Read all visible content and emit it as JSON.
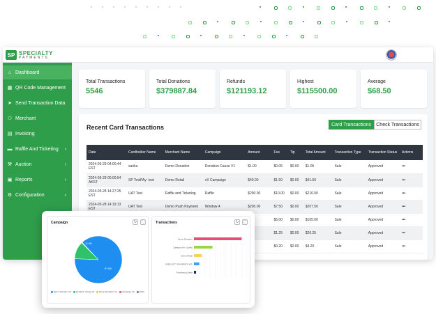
{
  "brand": {
    "logo_mark": "SP",
    "name_line1": "SPECIALTY",
    "name_line2": "PAYMENTS"
  },
  "sidebar": {
    "items": [
      {
        "label": "Dashboard",
        "icon": "home-icon",
        "glyph": "⌂",
        "active": true,
        "chevron": false
      },
      {
        "label": "QR Code Management",
        "icon": "qr-code-icon",
        "glyph": "▦",
        "active": false,
        "chevron": false
      },
      {
        "label": "Send Transaction Data",
        "icon": "send-icon",
        "glyph": "➤",
        "active": false,
        "chevron": false
      },
      {
        "label": "Merchant",
        "icon": "merchant-icon",
        "glyph": "⚇",
        "active": false,
        "chevron": false
      },
      {
        "label": "Invoicing",
        "icon": "invoice-icon",
        "glyph": "▤",
        "active": false,
        "chevron": false
      },
      {
        "label": "Raffle And Ticketing",
        "icon": "ticket-icon",
        "glyph": "▬",
        "active": false,
        "chevron": true
      },
      {
        "label": "Auction",
        "icon": "gavel-icon",
        "glyph": "⚒",
        "active": false,
        "chevron": true
      },
      {
        "label": "Reports",
        "icon": "report-icon",
        "glyph": "▣",
        "active": false,
        "chevron": true
      },
      {
        "label": "Configuration",
        "icon": "config-icon",
        "glyph": "⚙",
        "active": false,
        "chevron": true
      }
    ],
    "chevron_glyph": "›"
  },
  "stats": [
    {
      "label": "Total Transactions",
      "value": "5546"
    },
    {
      "label": "Total Donations",
      "value": "$379887.84"
    },
    {
      "label": "Refunds",
      "value": "$121193.12"
    },
    {
      "label": "Highest",
      "value": "$115500.00"
    },
    {
      "label": "Average",
      "value": "$68.50"
    }
  ],
  "recent": {
    "title": "Recent Card Transactions",
    "tab_card": "Card Transactions",
    "tab_check": "Check Transactions",
    "columns": [
      "Date",
      "Cardholder Name",
      "Merchant Name",
      "Campaign",
      "Amount",
      "Fee",
      "Tip",
      "Total Amount",
      "Transaction Type",
      "Transaction Status",
      "Actions"
    ],
    "rows": [
      [
        "2024-05-29 04:00:44 EST",
        "sarika",
        "Demo Donation",
        "Donation Cause V1",
        "$1.00",
        "$0.05",
        "$0.00",
        "$1.05",
        "Sale",
        "Approved",
        "•••"
      ],
      [
        "2024-05-29 00:00:54 AKST",
        "SP TestPAy- test",
        "Demo Retail",
        "vX Campaign",
        "$40.00",
        "$1.50",
        "$0.00",
        "$41.50",
        "Sale",
        "Approved",
        "•••"
      ],
      [
        "2024-05-28 14:27:25 EST",
        "UAT Test",
        "Raffle and Ticketing",
        "Raffle",
        "$200.00",
        "$10.00",
        "$0.00",
        "$210.00",
        "Sale",
        "Approved",
        "•••"
      ],
      [
        "2024-05-28 14:19:13 EST",
        "UAT Test",
        "Demo Push Payment",
        "Window 4",
        "$200.00",
        "$7.50",
        "$0.00",
        "$207.50",
        "Sale",
        "Approved",
        "•••"
      ],
      [
        "",
        "",
        "",
        "",
        "",
        "$5.00",
        "$0.00",
        "$105.00",
        "Sale",
        "Approved",
        "•••"
      ],
      [
        "",
        "",
        "",
        "",
        "",
        "$1.25",
        "$0.00",
        "$26.25",
        "Sale",
        "Approved",
        "•••"
      ],
      [
        "",
        "",
        "",
        "",
        "",
        "$0.20",
        "$0.00",
        "$4.20",
        "Sale",
        "Approved",
        "•••"
      ]
    ]
  },
  "widgets": {
    "campaign_title": "Campaign",
    "transactions_title": "Transactions",
    "refresh_glyph": "↻",
    "expand_glyph": "⛶"
  },
  "colors": {
    "brand_green": "#2f9e4a",
    "pie_main": "#1e8ff0",
    "pie_secondary": "#2fc26a"
  },
  "chart_data": [
    {
      "type": "pie",
      "title": "Campaign",
      "slices": [
        {
          "label": "Demo Donation V1",
          "value": 87.6,
          "color": "#1e8ff0"
        },
        {
          "label": "Donation Cause V1",
          "value": 11.9,
          "color": "#2fc26a"
        },
        {
          "label": "Demo Donation V2",
          "value": 0.3,
          "color": "#f4c542"
        },
        {
          "label": "Campaign 4A",
          "value": 0.1,
          "color": "#e2507a"
        },
        {
          "label": "Other",
          "value": 0.1,
          "color": "#9b59b6"
        }
      ],
      "data_labels": [
        "87.6%",
        "11.9%"
      ]
    },
    {
      "type": "bar",
      "title": "Transactions",
      "orientation": "horizontal",
      "categories": [
        "Demo Donation",
        "Category Kit - Quirky",
        "Demo Retail",
        "SPECIALTY PAYMENTS INC",
        "Processing Sales"
      ],
      "values": [
        9000,
        3500,
        1500,
        1000,
        400
      ],
      "colors": [
        "#e2507a",
        "#9bd648",
        "#f4d35e",
        "#3aa0f0",
        "#1a2a6c"
      ],
      "xlim": [
        0,
        10000
      ]
    }
  ]
}
